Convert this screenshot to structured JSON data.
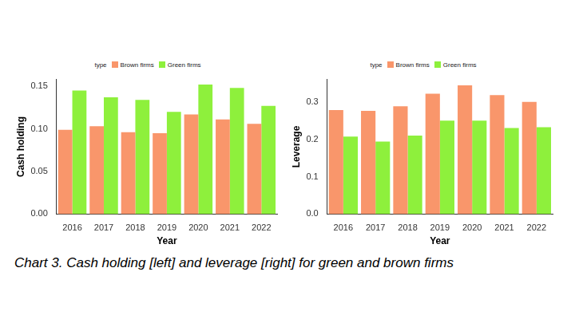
{
  "caption": "Chart 3. Cash holding [left] and leverage [right] for green and brown firms",
  "chart_data": [
    {
      "type": "bar",
      "x_label": "Year",
      "y_label": "Cash holding",
      "legend_title": "type",
      "legend": "top",
      "grid": false,
      "categories": [
        "2016",
        "2017",
        "2018",
        "2019",
        "2020",
        "2021",
        "2022"
      ],
      "series": [
        {
          "name": "Brown firms",
          "color": "#f9966b",
          "values": [
            0.099,
            0.103,
            0.096,
            0.095,
            0.117,
            0.111,
            0.106
          ]
        },
        {
          "name": "Green firms",
          "color": "#8ef03c",
          "values": [
            0.145,
            0.137,
            0.134,
            0.12,
            0.152,
            0.148,
            0.127
          ]
        }
      ],
      "ylim": [
        0,
        0.158
      ],
      "yticks": [
        {
          "value": 0,
          "label": "0.00"
        },
        0.05,
        {
          "value": 0.1,
          "label": "0.10"
        },
        0.15
      ]
    },
    {
      "type": "bar",
      "x_label": "Year",
      "y_label": "Leverage",
      "legend_title": "type",
      "legend": "top",
      "grid": false,
      "categories": [
        "2016",
        "2017",
        "2018",
        "2019",
        "2020",
        "2021",
        "2022"
      ],
      "series": [
        {
          "name": "Brown firms",
          "color": "#f9966b",
          "values": [
            0.278,
            0.276,
            0.288,
            0.322,
            0.344,
            0.318,
            0.3
          ]
        },
        {
          "name": "Green firms",
          "color": "#8ef03c",
          "values": [
            0.207,
            0.194,
            0.21,
            0.25,
            0.25,
            0.23,
            0.232
          ]
        }
      ],
      "ylim": [
        0,
        0.36
      ],
      "yticks": [
        {
          "value": 0,
          "label": "0.0"
        },
        0.1,
        0.2,
        0.3
      ]
    }
  ]
}
